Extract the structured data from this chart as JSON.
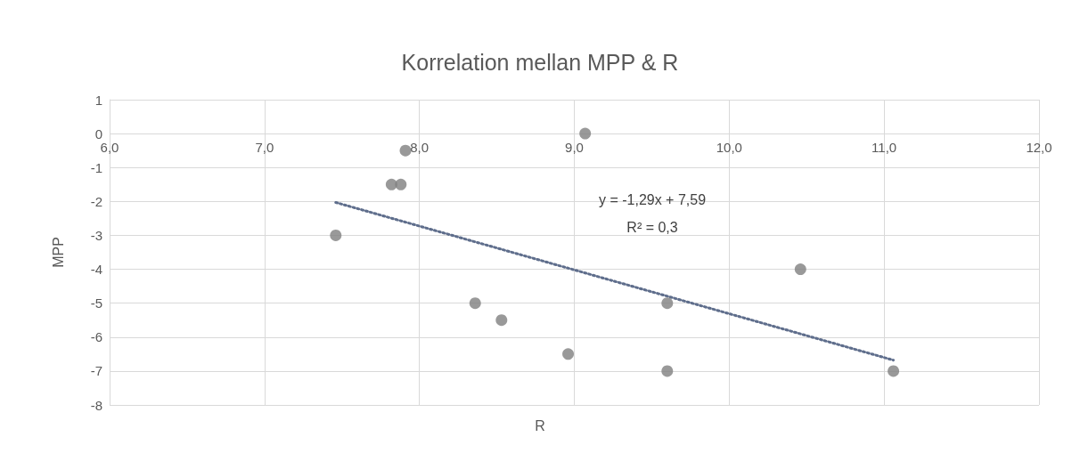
{
  "chart_data": {
    "type": "scatter",
    "title": "Korrelation mellan MPP & R",
    "xlabel": "R",
    "ylabel": "MPP",
    "annotations": [
      "y = -1,29x + 7,59",
      "R² = 0,3"
    ],
    "series": [
      {
        "type": "scatter",
        "color": "#7f7f7f",
        "marker": "circle",
        "x": [
          7.46,
          7.82,
          7.88,
          7.91,
          9.07,
          8.36,
          8.53,
          8.96,
          9.6,
          9.6,
          10.46,
          11.06
        ],
        "values": [
          -3,
          -1.5,
          -1.5,
          -0.5,
          0,
          -5,
          -5.5,
          -6.5,
          -5,
          -7,
          -4,
          -7
        ]
      },
      {
        "type": "line",
        "color": "#5f6e8c",
        "marker": "none",
        "line_style": "dotted",
        "x": [
          7.46,
          11.06
        ],
        "values": [
          -2.03,
          -6.68
        ]
      }
    ],
    "xlim": [
      6,
      12
    ],
    "xticks": [
      {
        "value": 6,
        "label": "6,0"
      },
      {
        "value": 7,
        "label": "7,0"
      },
      {
        "value": 8,
        "label": "8,0"
      },
      {
        "value": 9,
        "label": "9,0"
      },
      {
        "value": 10,
        "label": "10,0"
      },
      {
        "value": 11,
        "label": "11,0"
      },
      {
        "value": 12,
        "label": "12,0"
      }
    ],
    "ylim": [
      -8,
      1
    ],
    "yticks": [
      -8,
      -7,
      -6,
      -5,
      -4,
      -3,
      -2,
      -1,
      0,
      1
    ],
    "grid": true
  }
}
